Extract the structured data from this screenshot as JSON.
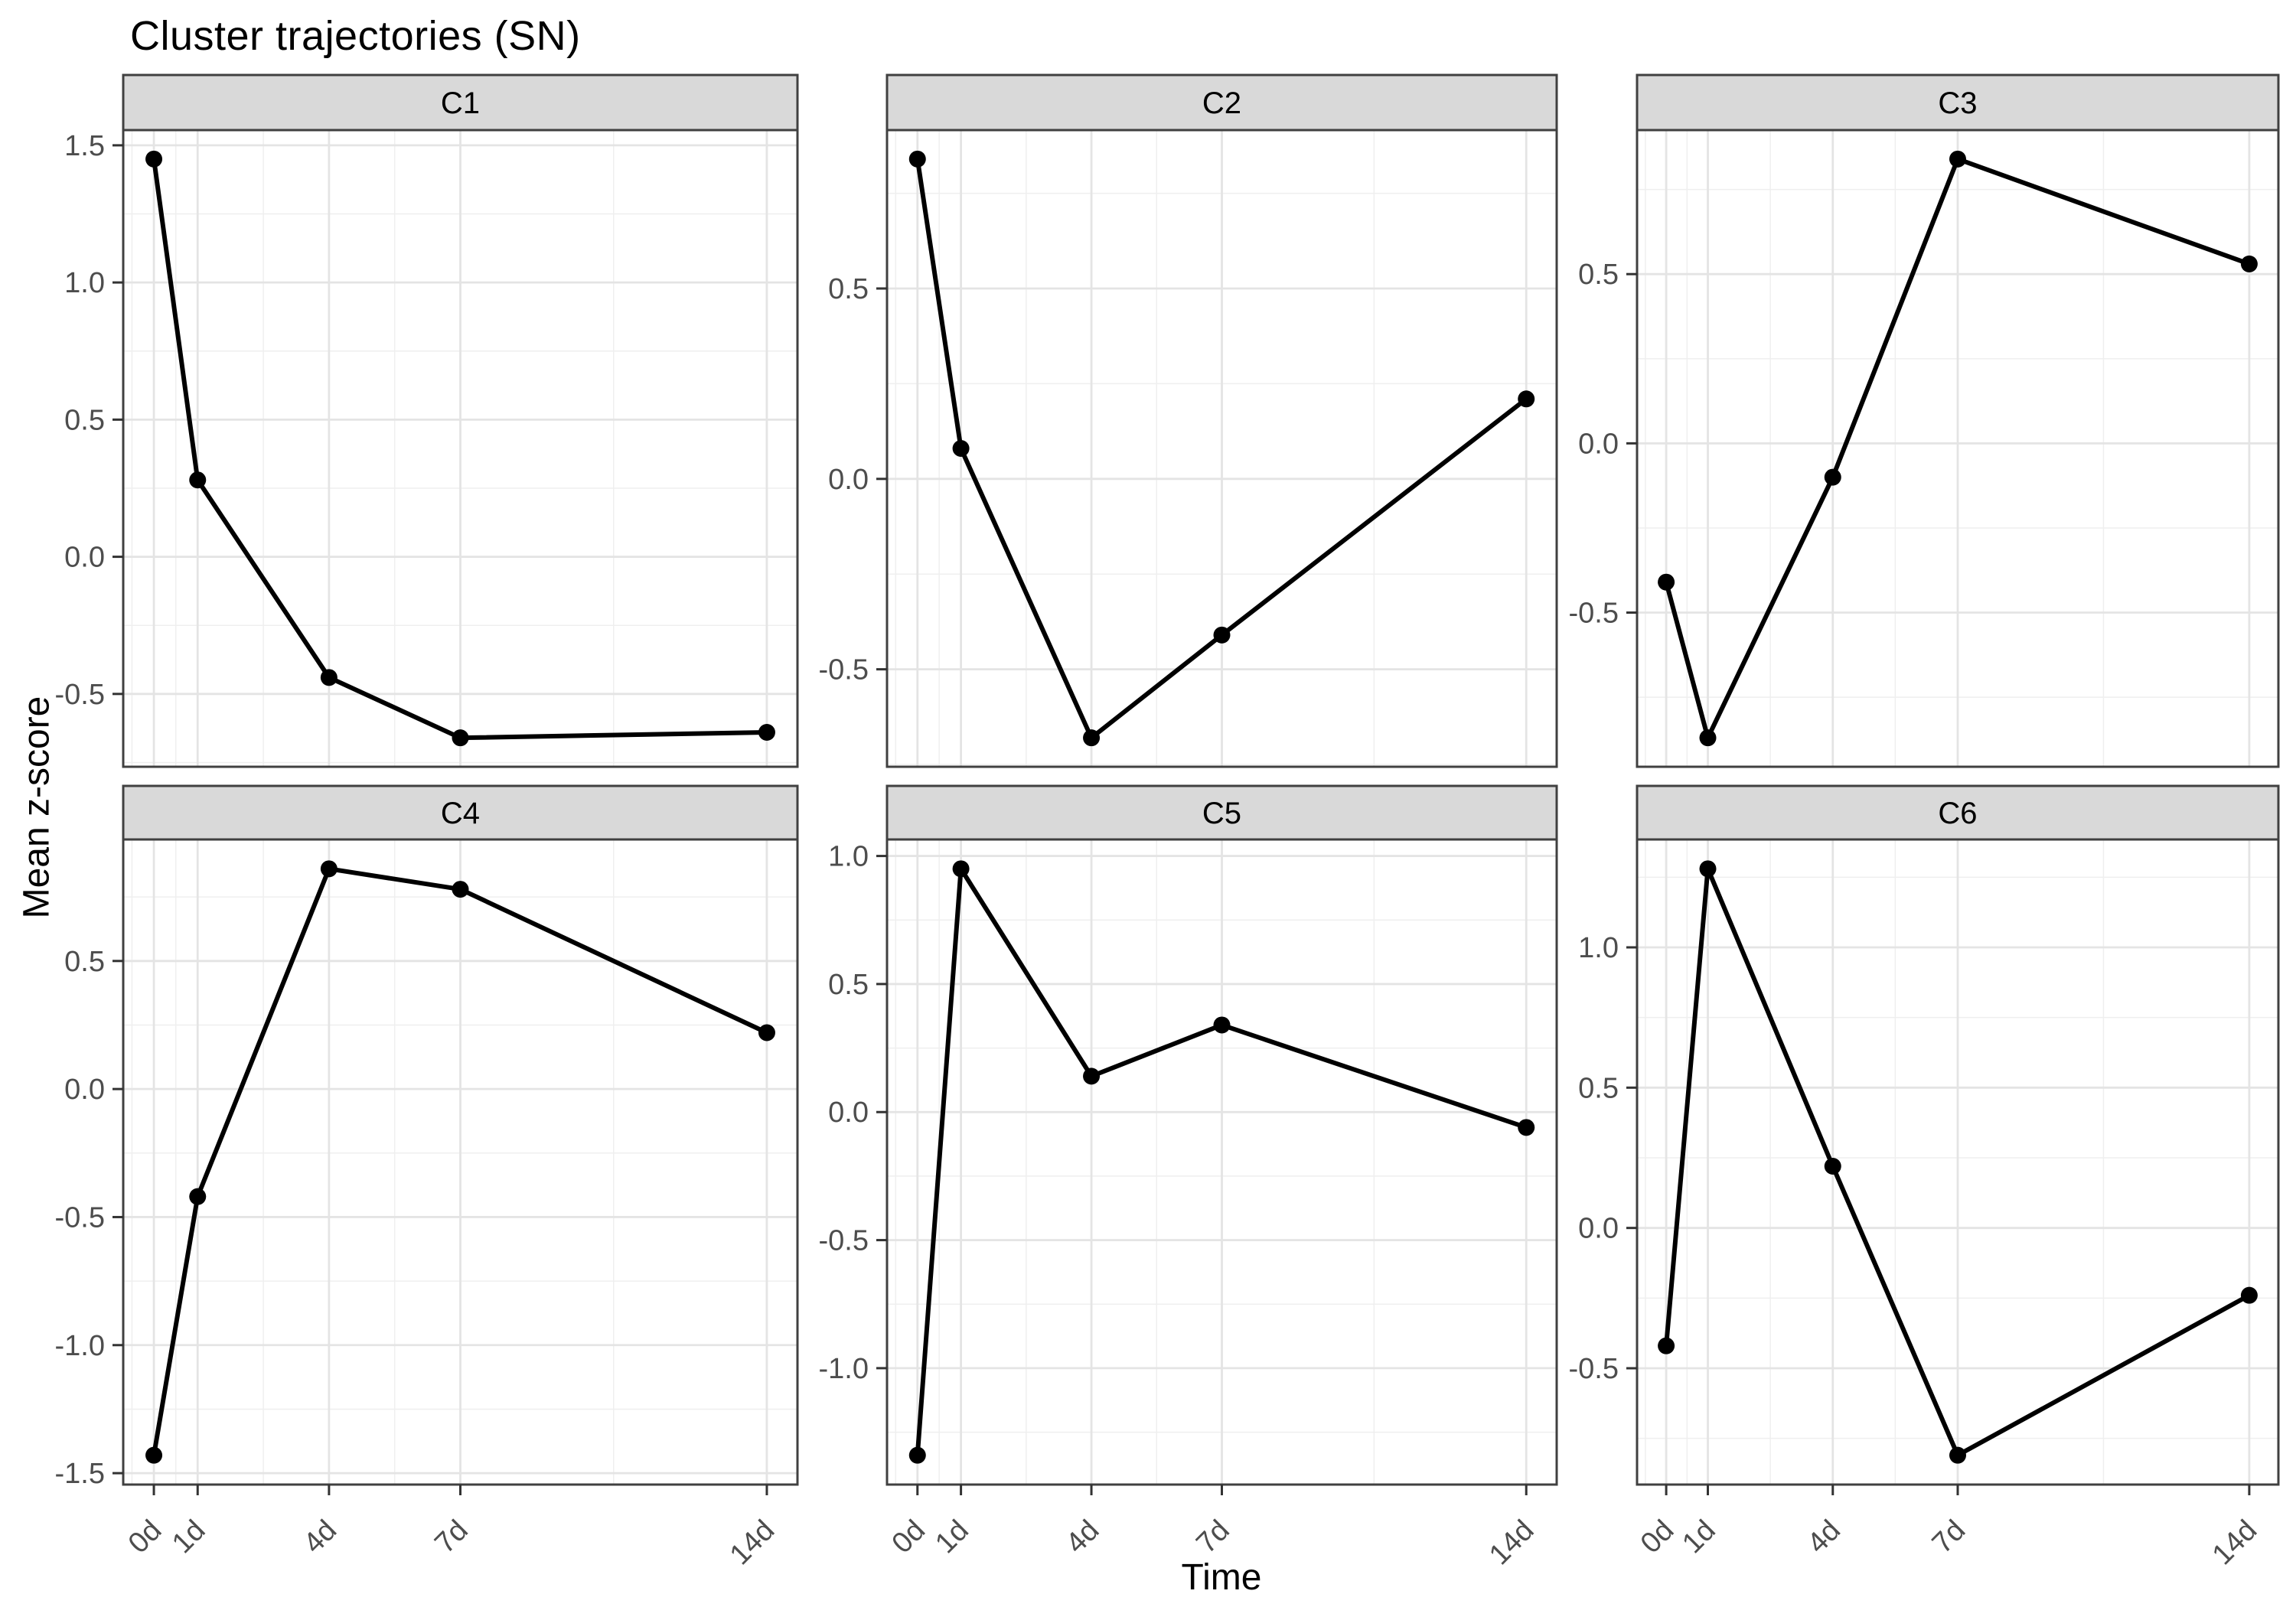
{
  "title": "Cluster trajectories (SN)",
  "colors": {
    "strip_fill": "#d9d9d9",
    "strip_border": "#404040",
    "panel_border": "#404040",
    "panel_bg": "#ffffff",
    "grid_major": "#e4e4e4",
    "grid_minor": "#efefef",
    "tick_mark": "#333333",
    "tick_label": "#4d4d4d",
    "line": "#000000",
    "point": "#000000",
    "text": "#000000"
  },
  "chart_data": {
    "type": "line",
    "title": "Cluster trajectories (SN)",
    "xlabel": "Time",
    "ylabel": "Mean z-score",
    "grid": true,
    "legend": "none",
    "x": [
      0,
      1,
      4,
      7,
      14
    ],
    "x_tick_labels": [
      "0d",
      "1d",
      "4d",
      "7d",
      "14d"
    ],
    "x_range": [
      -0.7,
      14.7
    ],
    "expansion": 0.05,
    "facets": [
      {
        "label": "C1",
        "values": [
          1.45,
          0.28,
          -0.44,
          -0.66,
          -0.64
        ],
        "y_ticks": [
          -0.5,
          0.0,
          0.5,
          1.0,
          1.5
        ]
      },
      {
        "label": "C2",
        "values": [
          0.84,
          0.08,
          -0.68,
          -0.41,
          0.21
        ],
        "y_ticks": [
          -0.5,
          0.0,
          0.5
        ]
      },
      {
        "label": "C3",
        "values": [
          -0.41,
          -0.87,
          -0.1,
          0.84,
          0.53
        ],
        "y_ticks": [
          -0.5,
          0.0,
          0.5
        ]
      },
      {
        "label": "C4",
        "values": [
          -1.43,
          -0.42,
          0.86,
          0.78,
          0.22
        ],
        "y_ticks": [
          -1.5,
          -1.0,
          -0.5,
          0.0,
          0.5
        ]
      },
      {
        "label": "C5",
        "values": [
          -1.34,
          0.95,
          0.14,
          0.34,
          -0.06
        ],
        "y_ticks": [
          -1.0,
          -0.5,
          0.0,
          0.5,
          1.0
        ]
      },
      {
        "label": "C6",
        "values": [
          -0.42,
          1.28,
          0.22,
          -0.81,
          -0.24
        ],
        "y_ticks": [
          -0.5,
          0.0,
          0.5,
          1.0
        ]
      }
    ]
  }
}
